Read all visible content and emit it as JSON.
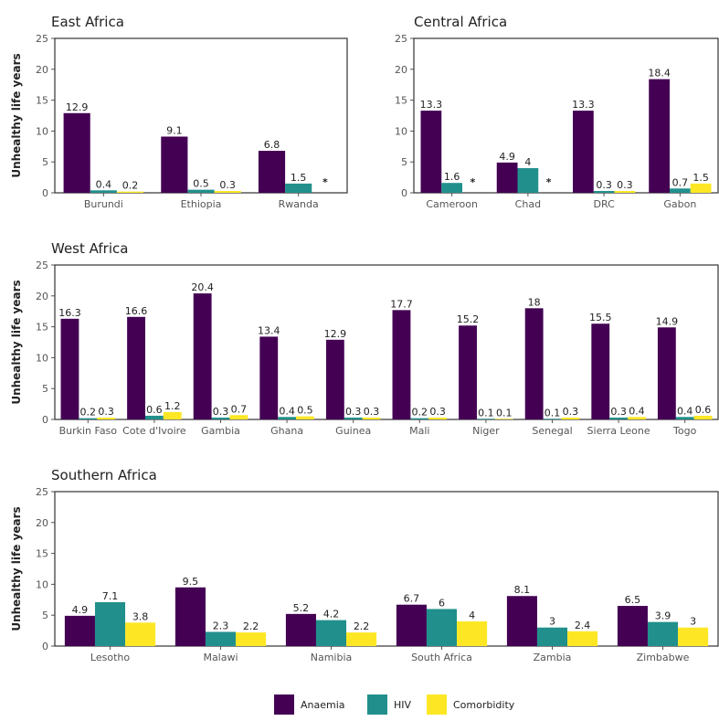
{
  "chart_data": [
    {
      "type": "bar",
      "title": "East Africa",
      "ylabel": "Unhealthy life years",
      "ylim": [
        0,
        25
      ],
      "yticks": [
        0,
        5,
        10,
        15,
        20,
        25
      ],
      "categories": [
        "Burundi",
        "Ethiopia",
        "Rwanda"
      ],
      "series": [
        {
          "name": "Anaemia",
          "values": [
            12.9,
            9.1,
            6.8
          ]
        },
        {
          "name": "HIV",
          "values": [
            0.4,
            0.5,
            1.5
          ]
        },
        {
          "name": "Comorbidity",
          "values": [
            0.2,
            0.3,
            null
          ]
        }
      ],
      "missing_marker": "*"
    },
    {
      "type": "bar",
      "title": "Central Africa",
      "ylim": [
        0,
        25
      ],
      "yticks": [
        0,
        5,
        10,
        15,
        20,
        25
      ],
      "categories": [
        "Cameroon",
        "Chad",
        "DRC",
        "Gabon"
      ],
      "series": [
        {
          "name": "Anaemia",
          "values": [
            13.3,
            4.9,
            13.3,
            18.4
          ]
        },
        {
          "name": "HIV",
          "values": [
            1.6,
            4,
            0.3,
            0.7
          ]
        },
        {
          "name": "Comorbidity",
          "values": [
            null,
            null,
            0.3,
            1.5
          ]
        }
      ],
      "missing_marker": "*"
    },
    {
      "type": "bar",
      "title": "West Africa",
      "ylabel": "Unhealthy life years",
      "ylim": [
        0,
        25
      ],
      "yticks": [
        0,
        5,
        10,
        15,
        20,
        25
      ],
      "categories": [
        "Burkin Faso",
        "Cote d'Ivoire",
        "Gambia",
        "Ghana",
        "Guinea",
        "Mali",
        "Niger",
        "Senegal",
        "Sierra Leone",
        "Togo"
      ],
      "series": [
        {
          "name": "Anaemia",
          "values": [
            16.3,
            16.6,
            20.4,
            13.4,
            12.9,
            17.7,
            15.2,
            18,
            15.5,
            14.9
          ]
        },
        {
          "name": "HIV",
          "values": [
            0.2,
            0.6,
            0.3,
            0.4,
            0.3,
            0.2,
            0.1,
            0.1,
            0.3,
            0.4
          ]
        },
        {
          "name": "Comorbidity",
          "values": [
            0.3,
            1.2,
            0.7,
            0.5,
            0.3,
            0.3,
            0.1,
            0.3,
            0.4,
            0.6
          ]
        }
      ]
    },
    {
      "type": "bar",
      "title": "Southern Africa",
      "ylabel": "Unhealthy life years",
      "ylim": [
        0,
        25
      ],
      "yticks": [
        0,
        5,
        10,
        15,
        20,
        25
      ],
      "categories": [
        "Lesotho",
        "Malawi",
        "Namibia",
        "South Africa",
        "Zambia",
        "Zimbabwe"
      ],
      "series": [
        {
          "name": "Anaemia",
          "values": [
            4.9,
            9.5,
            5.2,
            6.7,
            8.1,
            6.5
          ]
        },
        {
          "name": "HIV",
          "values": [
            7.1,
            2.3,
            4.2,
            6,
            3,
            3.9
          ]
        },
        {
          "name": "Comorbidity",
          "values": [
            3.8,
            2.2,
            2.2,
            4,
            2.4,
            3
          ]
        }
      ]
    }
  ],
  "colors": {
    "Anaemia": "#440154",
    "HIV": "#21908C",
    "Comorbidity": "#FDE725"
  },
  "legend": {
    "items": [
      "Anaemia",
      "HIV",
      "Comorbidity"
    ],
    "position": "bottom"
  }
}
